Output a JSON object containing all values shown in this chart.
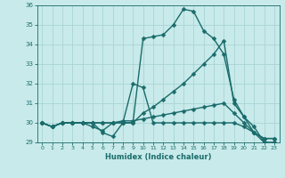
{
  "xlabel": "Humidex (Indice chaleur)",
  "bg_color": "#c8eaea",
  "grid_color": "#aad4d4",
  "line_color": "#1a6b6b",
  "markersize": 2.5,
  "linewidth": 1.0,
  "xlim": [
    -0.5,
    23.5
  ],
  "ylim": [
    29,
    36
  ],
  "yticks": [
    29,
    30,
    31,
    32,
    33,
    34,
    35,
    36
  ],
  "xticks": [
    0,
    1,
    2,
    3,
    4,
    5,
    6,
    7,
    8,
    9,
    10,
    11,
    12,
    13,
    14,
    15,
    16,
    17,
    18,
    19,
    20,
    21,
    22,
    23
  ],
  "series": [
    [
      30.0,
      29.8,
      30.0,
      30.0,
      30.0,
      30.0,
      29.5,
      29.3,
      30.0,
      30.0,
      30.5,
      30.8,
      31.2,
      31.6,
      32.0,
      32.5,
      33.0,
      33.5,
      34.2,
      31.0,
      30.3,
      29.5,
      29.0,
      29.0
    ],
    [
      30.0,
      29.8,
      30.0,
      30.0,
      30.0,
      30.0,
      30.0,
      30.0,
      30.1,
      30.1,
      30.2,
      30.3,
      30.4,
      30.5,
      30.6,
      30.7,
      30.8,
      30.9,
      31.0,
      30.5,
      30.0,
      29.5,
      29.2,
      29.2
    ],
    [
      30.0,
      29.8,
      30.0,
      30.0,
      30.0,
      30.0,
      30.0,
      30.0,
      30.0,
      30.0,
      34.3,
      34.4,
      34.5,
      35.0,
      35.8,
      35.7,
      34.7,
      34.3,
      33.5,
      31.2,
      30.3,
      29.8,
      29.0,
      29.0
    ],
    [
      30.0,
      29.8,
      30.0,
      30.0,
      30.0,
      29.8,
      29.6,
      30.0,
      30.0,
      32.0,
      31.8,
      30.0,
      30.0,
      30.0,
      30.0,
      30.0,
      30.0,
      30.0,
      30.0,
      30.0,
      29.8,
      29.5,
      29.2,
      29.2
    ]
  ]
}
